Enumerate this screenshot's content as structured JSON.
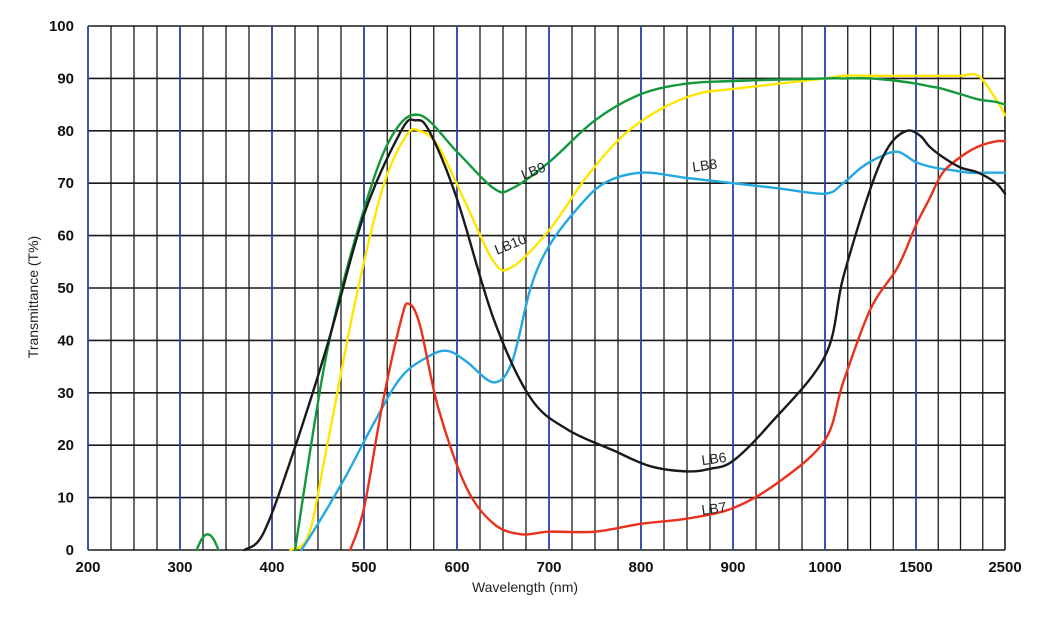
{
  "chart_data": {
    "type": "line",
    "xlabel": "Wavelength (nm)",
    "ylabel": "Transmittance (T%)",
    "ylim": [
      0,
      100
    ],
    "y_ticks": [
      0,
      10,
      20,
      30,
      40,
      50,
      60,
      70,
      80,
      90,
      100
    ],
    "x_ticks": [
      "200",
      "300",
      "400",
      "500",
      "600",
      "700",
      "800",
      "900",
      "1000",
      "1500",
      "2500"
    ],
    "grid": true,
    "colors": {
      "LB6": "#1a1a1a",
      "LB7": "#e8321e",
      "LB8": "#23a8e0",
      "LB9": "#13993c",
      "LB10": "#ffe600",
      "minor_grid": "#1a1a1a",
      "major_grid": "#2a3fa8"
    },
    "series": [
      {
        "name": "LB6",
        "x": [
          370,
          390,
          420,
          460,
          500,
          540,
          555,
          570,
          600,
          640,
          680,
          720,
          770,
          810,
          850,
          875,
          900,
          940,
          1000,
          1100,
          1250,
          1350,
          1450,
          1550,
          1650,
          1800,
          2000,
          2200,
          2400,
          2500
        ],
        "y": [
          0,
          3,
          17,
          39,
          64,
          80,
          82,
          80,
          67,
          44,
          29,
          23,
          19,
          16,
          15,
          15.5,
          17,
          24,
          37,
          52,
          69,
          77,
          80,
          79,
          77,
          75,
          73,
          72,
          70,
          68
        ]
      },
      {
        "name": "LB7",
        "x": [
          485,
          500,
          520,
          540,
          548,
          560,
          580,
          610,
          640,
          670,
          700,
          750,
          800,
          850,
          900,
          950,
          1000,
          1100,
          1250,
          1400,
          1500,
          1650,
          1800,
          2000,
          2200,
          2400,
          2500
        ],
        "y": [
          0,
          8,
          28,
          44,
          47,
          43,
          27,
          12,
          5,
          3,
          3.5,
          3.5,
          5,
          6,
          8,
          13,
          21,
          32,
          46,
          54,
          62,
          67,
          72,
          75,
          77,
          78,
          78
        ]
      },
      {
        "name": "LB8",
        "x": [
          432,
          450,
          480,
          510,
          540,
          570,
          590,
          610,
          640,
          660,
          680,
          700,
          730,
          760,
          800,
          850,
          900,
          950,
          1000,
          1100,
          1200,
          1300,
          1400,
          1500,
          1700,
          1900,
          2100,
          2300,
          2500
        ],
        "y": [
          0,
          5,
          14,
          24,
          33,
          37,
          38,
          36,
          32,
          36,
          50,
          58,
          65,
          70,
          72,
          71,
          70,
          69,
          68,
          70,
          73,
          75,
          76,
          74,
          73,
          72.5,
          72,
          72,
          72
        ]
      },
      {
        "name": "LB9",
        "x": [
          425,
          460,
          500,
          530,
          560,
          600,
          640,
          660,
          700,
          750,
          800,
          850,
          900,
          1000,
          1100,
          1250,
          1400,
          1500,
          1650,
          1800,
          2000,
          2200,
          2400,
          2500
        ],
        "y": [
          0,
          38,
          65,
          79,
          83,
          76,
          69,
          69,
          74,
          82,
          87,
          89,
          89.5,
          90,
          90,
          90,
          89.5,
          89,
          88.5,
          88,
          87,
          86,
          85.5,
          85
        ]
      },
      {
        "name": "LB10",
        "x": [
          420,
          440,
          460,
          490,
          520,
          545,
          560,
          580,
          610,
          640,
          660,
          700,
          740,
          780,
          820,
          860,
          900,
          1000,
          1100,
          1250,
          1400,
          1500,
          1650,
          1800,
          2000,
          2200,
          2400,
          2500
        ],
        "y": [
          0,
          3,
          20,
          47,
          69,
          79,
          80,
          77,
          66,
          55,
          54,
          61,
          71,
          79,
          84,
          87,
          88,
          90,
          90.5,
          90.5,
          90.5,
          90.5,
          90.5,
          90.5,
          90.5,
          90.5,
          86,
          83
        ]
      },
      {
        "name": "",
        "x": [
          318,
          324,
          330,
          336,
          342
        ],
        "y": [
          0,
          2.2,
          3,
          2.2,
          0
        ]
      }
    ],
    "annotations": [
      {
        "text": "LB6",
        "series": "LB6",
        "x": 880,
        "y": 16.5,
        "rotate": -8
      },
      {
        "text": "LB7",
        "series": "LB7",
        "x": 880,
        "y": 7,
        "rotate": -8
      },
      {
        "text": "LB8",
        "series": "LB8",
        "x": 870,
        "y": 72.5,
        "rotate": -8
      },
      {
        "text": "LB9",
        "series": "LB9",
        "x": 685,
        "y": 71.5,
        "rotate": -22
      },
      {
        "text": "LB10",
        "series": "LB10",
        "x": 660,
        "y": 57.5,
        "rotate": -22
      }
    ]
  }
}
